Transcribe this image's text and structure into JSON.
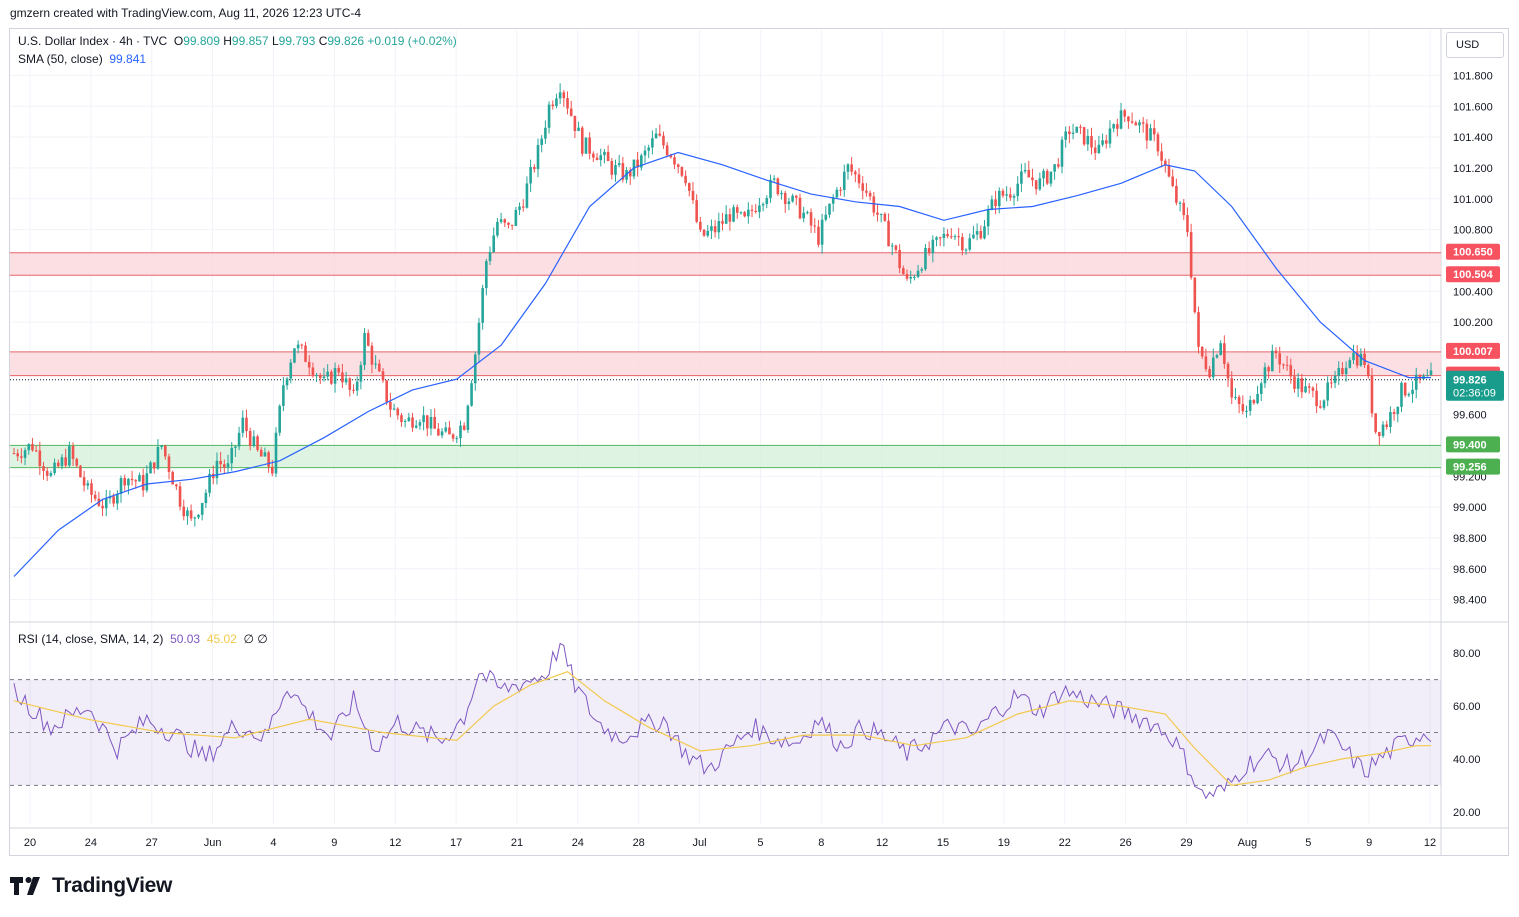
{
  "header": {
    "credit": "gmzern created with TradingView.com, Aug 11, 2026 12:23 UTC-4"
  },
  "legend": {
    "symbol": "U.S. Dollar Index · 4h · TVC",
    "o_label": "O",
    "o": "99.809",
    "h_label": "H",
    "h": "99.857",
    "l_label": "L",
    "l": "99.793",
    "c_label": "C",
    "c": "99.826",
    "change": "+0.019 (+0.02%)",
    "sma_label": "SMA (50, close)",
    "sma_value": "99.841",
    "rsi_label": "RSI (14, close, SMA, 14, 2)",
    "rsi_value": "50.03",
    "rsi_ma_value": "45.02",
    "rsi_extra": "∅ ∅"
  },
  "currency": "USD",
  "footer": {
    "brand": "TradingView"
  },
  "colors": {
    "up": "#26a69a",
    "down": "#ef5350",
    "sma": "#2962ff",
    "rsi": "#7e57c2",
    "rsi_ma": "#f2c94c",
    "resistance_zone": "#fbd7db",
    "support_zone": "#d6f0d9"
  },
  "chart_data": {
    "type": "candlestick",
    "price_axis": {
      "ticks": [
        "101.800",
        "101.600",
        "101.400",
        "101.200",
        "101.000",
        "100.800",
        "100.400",
        "100.200",
        "99.600",
        "99.200",
        "99.000",
        "98.800",
        "98.600",
        "98.400"
      ],
      "range": [
        98.3,
        101.9
      ]
    },
    "x_axis": {
      "labels": [
        "20",
        "24",
        "27",
        "Jun",
        "4",
        "9",
        "12",
        "17",
        "21",
        "24",
        "28",
        "Jul",
        "5",
        "8",
        "12",
        "15",
        "19",
        "22",
        "26",
        "29",
        "Aug",
        "5",
        "9",
        "12"
      ]
    },
    "price_labels": [
      {
        "text": "100.650",
        "value": 100.65,
        "kind": "resistance"
      },
      {
        "text": "100.504",
        "value": 100.504,
        "kind": "resistance"
      },
      {
        "text": "100.007",
        "value": 100.007,
        "kind": "resistance"
      },
      {
        "text": "99.853",
        "value": 99.853,
        "kind": "resistance"
      },
      {
        "text": "99.400",
        "value": 99.4,
        "kind": "support"
      },
      {
        "text": "99.256",
        "value": 99.256,
        "kind": "support"
      }
    ],
    "current": {
      "price": "99.826",
      "value": 99.826,
      "countdown": "02:36:09"
    },
    "zones": [
      {
        "type": "resistance",
        "from": 100.504,
        "to": 100.65
      },
      {
        "type": "resistance",
        "from": 99.853,
        "to": 100.007
      },
      {
        "type": "support",
        "from": 99.256,
        "to": 99.4
      }
    ],
    "close_path": [
      [
        0,
        99.35
      ],
      [
        5,
        99.4
      ],
      [
        10,
        99.2
      ],
      [
        15,
        99.35
      ],
      [
        20,
        99.1
      ],
      [
        25,
        99.0
      ],
      [
        30,
        99.2
      ],
      [
        35,
        99.15
      ],
      [
        40,
        99.4
      ],
      [
        45,
        99.05
      ],
      [
        48,
        98.9
      ],
      [
        52,
        99.1
      ],
      [
        55,
        99.3
      ],
      [
        58,
        99.25
      ],
      [
        62,
        99.55
      ],
      [
        66,
        99.35
      ],
      [
        70,
        99.25
      ],
      [
        73,
        99.8
      ],
      [
        76,
        100.05
      ],
      [
        80,
        99.95
      ],
      [
        84,
        99.8
      ],
      [
        88,
        99.9
      ],
      [
        92,
        99.7
      ],
      [
        95,
        100.1
      ],
      [
        98,
        99.9
      ],
      [
        102,
        99.65
      ],
      [
        106,
        99.55
      ],
      [
        110,
        99.6
      ],
      [
        114,
        99.5
      ],
      [
        118,
        99.45
      ],
      [
        122,
        99.55
      ],
      [
        125,
        100.0
      ],
      [
        128,
        100.6
      ],
      [
        131,
        100.85
      ],
      [
        134,
        100.8
      ],
      [
        138,
        101.0
      ],
      [
        142,
        101.3
      ],
      [
        145,
        101.6
      ],
      [
        148,
        101.75
      ],
      [
        151,
        101.55
      ],
      [
        154,
        101.35
      ],
      [
        158,
        101.3
      ],
      [
        162,
        101.2
      ],
      [
        166,
        101.15
      ],
      [
        170,
        101.25
      ],
      [
        174,
        101.4
      ],
      [
        178,
        101.3
      ],
      [
        182,
        101.15
      ],
      [
        186,
        100.75
      ],
      [
        190,
        100.8
      ],
      [
        194,
        100.9
      ],
      [
        198,
        100.85
      ],
      [
        202,
        101.0
      ],
      [
        206,
        101.1
      ],
      [
        210,
        101.0
      ],
      [
        214,
        100.9
      ],
      [
        218,
        100.75
      ],
      [
        222,
        101.0
      ],
      [
        226,
        101.2
      ],
      [
        230,
        101.1
      ],
      [
        234,
        100.9
      ],
      [
        238,
        100.7
      ],
      [
        242,
        100.45
      ],
      [
        246,
        100.6
      ],
      [
        250,
        100.7
      ],
      [
        254,
        100.8
      ],
      [
        258,
        100.7
      ],
      [
        262,
        100.8
      ],
      [
        266,
        101.0
      ],
      [
        270,
        101.05
      ],
      [
        274,
        101.15
      ],
      [
        278,
        101.1
      ],
      [
        282,
        101.2
      ],
      [
        286,
        101.45
      ],
      [
        290,
        101.4
      ],
      [
        294,
        101.3
      ],
      [
        298,
        101.5
      ],
      [
        302,
        101.55
      ],
      [
        306,
        101.45
      ],
      [
        310,
        101.35
      ],
      [
        314,
        101.05
      ],
      [
        318,
        100.8
      ],
      [
        321,
        100.0
      ],
      [
        324,
        99.9
      ],
      [
        327,
        100.1
      ],
      [
        330,
        99.7
      ],
      [
        334,
        99.6
      ],
      [
        338,
        99.85
      ],
      [
        342,
        100.0
      ],
      [
        346,
        99.85
      ],
      [
        350,
        99.75
      ],
      [
        354,
        99.7
      ],
      [
        358,
        99.8
      ],
      [
        362,
        100.0
      ],
      [
        366,
        99.95
      ],
      [
        369,
        99.5
      ],
      [
        372,
        99.55
      ],
      [
        376,
        99.75
      ],
      [
        380,
        99.8
      ],
      [
        384,
        99.83
      ]
    ],
    "sma_path": [
      [
        0,
        98.55
      ],
      [
        12,
        98.85
      ],
      [
        24,
        99.05
      ],
      [
        36,
        99.15
      ],
      [
        48,
        99.18
      ],
      [
        60,
        99.23
      ],
      [
        72,
        99.3
      ],
      [
        84,
        99.45
      ],
      [
        96,
        99.62
      ],
      [
        108,
        99.76
      ],
      [
        120,
        99.83
      ],
      [
        132,
        100.05
      ],
      [
        144,
        100.45
      ],
      [
        156,
        100.95
      ],
      [
        168,
        101.2
      ],
      [
        180,
        101.3
      ],
      [
        192,
        101.22
      ],
      [
        204,
        101.12
      ],
      [
        216,
        101.03
      ],
      [
        228,
        100.98
      ],
      [
        240,
        100.95
      ],
      [
        252,
        100.86
      ],
      [
        264,
        100.93
      ],
      [
        276,
        100.95
      ],
      [
        288,
        101.02
      ],
      [
        300,
        101.1
      ],
      [
        312,
        101.22
      ],
      [
        320,
        101.18
      ],
      [
        330,
        100.95
      ],
      [
        342,
        100.55
      ],
      [
        354,
        100.2
      ],
      [
        366,
        99.95
      ],
      [
        378,
        99.84
      ],
      [
        384,
        99.84
      ]
    ],
    "candle_count": 385,
    "rsi": {
      "levels": [
        "80.00",
        "60.00",
        "40.00",
        "20.00"
      ],
      "range": [
        15,
        85
      ],
      "bands": [
        30,
        50,
        70
      ],
      "rsi_path": [
        [
          0,
          66
        ],
        [
          10,
          52
        ],
        [
          20,
          60
        ],
        [
          28,
          44
        ],
        [
          36,
          55
        ],
        [
          44,
          49
        ],
        [
          52,
          40
        ],
        [
          60,
          53
        ],
        [
          68,
          48
        ],
        [
          74,
          68
        ],
        [
          80,
          57
        ],
        [
          86,
          48
        ],
        [
          92,
          62
        ],
        [
          98,
          44
        ],
        [
          104,
          54
        ],
        [
          110,
          50
        ],
        [
          116,
          47
        ],
        [
          122,
          56
        ],
        [
          126,
          73
        ],
        [
          132,
          66
        ],
        [
          138,
          69
        ],
        [
          144,
          72
        ],
        [
          148,
          83
        ],
        [
          152,
          68
        ],
        [
          158,
          54
        ],
        [
          164,
          48
        ],
        [
          170,
          52
        ],
        [
          176,
          55
        ],
        [
          182,
          42
        ],
        [
          188,
          36
        ],
        [
          194,
          44
        ],
        [
          200,
          52
        ],
        [
          206,
          48
        ],
        [
          212,
          46
        ],
        [
          218,
          55
        ],
        [
          224,
          45
        ],
        [
          230,
          52
        ],
        [
          236,
          48
        ],
        [
          242,
          42
        ],
        [
          248,
          47
        ],
        [
          254,
          53
        ],
        [
          260,
          49
        ],
        [
          266,
          58
        ],
        [
          272,
          64
        ],
        [
          278,
          58
        ],
        [
          284,
          66
        ],
        [
          290,
          63
        ],
        [
          296,
          60
        ],
        [
          302,
          57
        ],
        [
          308,
          54
        ],
        [
          314,
          48
        ],
        [
          318,
          38
        ],
        [
          322,
          26
        ],
        [
          328,
          28
        ],
        [
          334,
          38
        ],
        [
          340,
          41
        ],
        [
          346,
          37
        ],
        [
          352,
          43
        ],
        [
          356,
          49
        ],
        [
          360,
          44
        ],
        [
          366,
          35
        ],
        [
          370,
          40
        ],
        [
          376,
          46
        ],
        [
          382,
          50
        ],
        [
          384,
          50
        ]
      ],
      "ma_path": [
        [
          0,
          62
        ],
        [
          20,
          55
        ],
        [
          40,
          50
        ],
        [
          60,
          48
        ],
        [
          80,
          55
        ],
        [
          100,
          50
        ],
        [
          120,
          47
        ],
        [
          130,
          60
        ],
        [
          140,
          68
        ],
        [
          150,
          73
        ],
        [
          160,
          62
        ],
        [
          172,
          52
        ],
        [
          186,
          43
        ],
        [
          200,
          45
        ],
        [
          214,
          49
        ],
        [
          230,
          49
        ],
        [
          244,
          45
        ],
        [
          258,
          48
        ],
        [
          272,
          57
        ],
        [
          286,
          62
        ],
        [
          300,
          60
        ],
        [
          312,
          57
        ],
        [
          320,
          44
        ],
        [
          330,
          30
        ],
        [
          340,
          32
        ],
        [
          350,
          37
        ],
        [
          360,
          40
        ],
        [
          370,
          42
        ],
        [
          380,
          45
        ],
        [
          384,
          45
        ]
      ]
    }
  }
}
